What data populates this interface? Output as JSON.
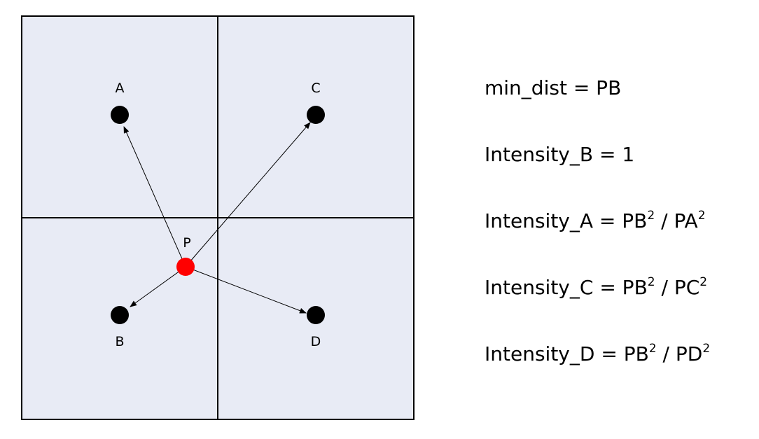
{
  "points": {
    "A": "A",
    "B": "B",
    "C": "C",
    "D": "D",
    "P": "P"
  },
  "colors": {
    "grid_fill": "#E8EBF5",
    "border": "#000000",
    "point": "#000000",
    "query_point": "#FF0000"
  },
  "formulas": {
    "min_dist": "min_dist = PB",
    "intensity_b": "Intensity_B = 1",
    "intensity_a": {
      "prefix": "Intensity_A = PB",
      "exp1": "2",
      "middle": " / PA",
      "exp2": "2"
    },
    "intensity_c": {
      "prefix": "Intensity_C = PB",
      "exp1": "2",
      "middle": " / PC",
      "exp2": "2"
    },
    "intensity_d": {
      "prefix": "Intensity_D = PB",
      "exp1": "2",
      "middle": " / PD",
      "exp2": "2"
    }
  }
}
